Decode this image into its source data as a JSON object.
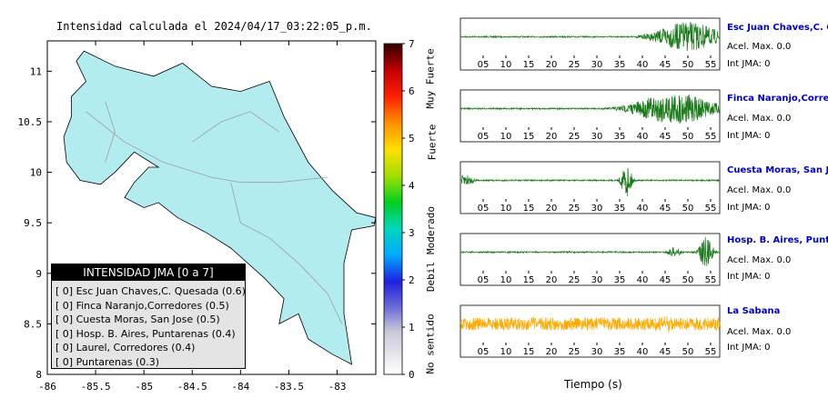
{
  "map": {
    "title": "Intensidad calculada el 2024/04/17_03:22:05_p.m.",
    "lon_ticks": [
      "-86",
      "-85.5",
      "-85",
      "-84.5",
      "-84",
      "-83.5",
      "-83"
    ],
    "lat_ticks": [
      "11",
      "10.5",
      "10",
      "9.5",
      "9",
      "8.5",
      "8"
    ],
    "land_color": "#b2ecee"
  },
  "legend": {
    "title": "INTENSIDAD JMA [0 a 7]",
    "items": [
      "[ 0] Esc Juan Chaves,C. Quesada (0.6)",
      "[ 0] Finca Naranjo,Corredores (0.5)",
      "[ 0] Cuesta Moras, San Jose (0.5)",
      "[ 0] Hosp. B. Aires, Puntarenas (0.4)",
      "[ 0] Laurel, Corredores (0.4)",
      "[ 0] Puntarenas (0.3)"
    ]
  },
  "color_scale": {
    "ticks": [
      "7",
      "6",
      "5",
      "4",
      "3",
      "2",
      "1",
      "0"
    ],
    "words": [
      "Muy Fuerte",
      "Fuerte",
      "Moderado",
      "Debil",
      "No sentido"
    ]
  },
  "panels": [
    {
      "name": "Esc Juan Chaves,C. Quesada",
      "acel": "Acel. Max. 0.0",
      "jma": "Int JMA: 0",
      "color": "#1a7a1a"
    },
    {
      "name": "Finca Naranjo,Corredores",
      "acel": "Acel. Max. 0.0",
      "jma": "Int JMA: 0",
      "color": "#1a7a1a"
    },
    {
      "name": "Cuesta Moras, San Jose",
      "acel": "Acel. Max. 0.0",
      "jma": "Int JMA: 0",
      "color": "#1a7a1a"
    },
    {
      "name": "Hosp. B. Aires, Puntarenas",
      "acel": "Acel. Max. 0.0",
      "jma": "Int JMA: 0",
      "color": "#1a7a1a"
    },
    {
      "name": "La Sabana",
      "acel": "Acel. Max. 0.0",
      "jma": "Int JMA: 0",
      "color": "#ffaa00"
    }
  ],
  "time_axis": {
    "label": "Tiempo (s)",
    "ticks": [
      "05",
      "10",
      "15",
      "20",
      "25",
      "30",
      "35",
      "40",
      "45",
      "50",
      "55"
    ],
    "xlim": [
      0,
      57
    ]
  },
  "chart_data": [
    {
      "type": "map",
      "title": "Intensidad calculada el 2024/04/17_03:22:05_p.m.",
      "xlim": [
        -86,
        -82.6
      ],
      "ylim": [
        8,
        11.3
      ],
      "xticks": [
        -86,
        -85.5,
        -85,
        -84.5,
        -84,
        -83.5,
        -83
      ],
      "yticks": [
        8,
        8.5,
        9,
        9.5,
        10,
        10.5,
        11
      ]
    },
    {
      "type": "colorbar",
      "range": [
        0,
        7
      ],
      "ticks": [
        0,
        1,
        2,
        3,
        4,
        5,
        6,
        7
      ],
      "labels": [
        "No sentido",
        "Debil",
        "Moderado",
        "Fuerte",
        "Muy Fuerte"
      ]
    },
    {
      "type": "line",
      "xlabel": "Tiempo (s)",
      "xlim": [
        0,
        57
      ],
      "xticks": [
        5,
        10,
        15,
        20,
        25,
        30,
        35,
        40,
        45,
        50,
        55
      ],
      "series": [
        {
          "name": "Esc Juan Chaves,C. Quesada",
          "bursts": [
            {
              "t": 50,
              "amp": 0.9,
              "width": 7
            }
          ]
        },
        {
          "name": "Finca Naranjo,Corredores",
          "bursts": [
            {
              "t": 47,
              "amp": 0.95,
              "width": 9
            }
          ]
        },
        {
          "name": "Cuesta Moras, San Jose",
          "bursts": [
            {
              "t": 36.5,
              "amp": 1.0,
              "width": 1.2
            },
            {
              "t": 1,
              "amp": 0.35,
              "width": 2
            }
          ]
        },
        {
          "name": "Hosp. B. Aires, Puntarenas",
          "bursts": [
            {
              "t": 54,
              "amp": 0.95,
              "width": 1.5
            },
            {
              "t": 47,
              "amp": 0.3,
              "width": 1.5
            }
          ]
        },
        {
          "name": "La Sabana",
          "bursts": [
            {
              "t": 45,
              "amp": 0.5,
              "width": 3
            }
          ]
        }
      ]
    }
  ]
}
